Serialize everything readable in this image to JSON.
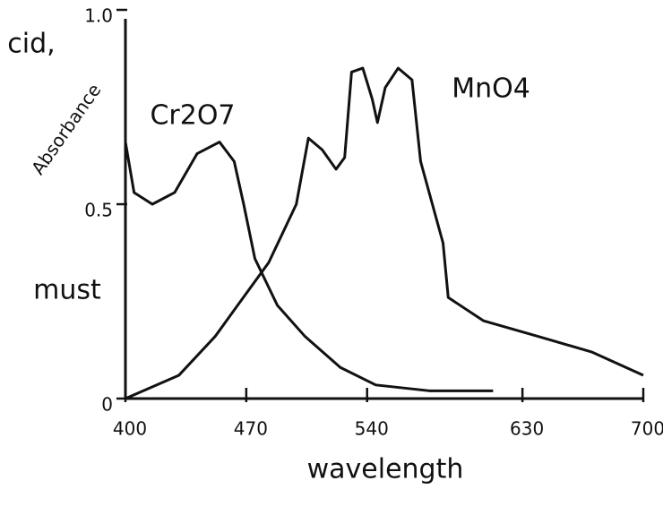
{
  "chart_data": {
    "type": "line",
    "x_label": "wavelength",
    "y_label": "Absorbance",
    "annotations": [
      "cid,",
      "must"
    ],
    "xlim": [
      400,
      700
    ],
    "xticks": [
      400,
      470,
      540,
      630,
      700
    ],
    "ylim": [
      0,
      1
    ],
    "yticks": [
      0,
      0.5,
      {
        "value": 1,
        "label": "1.0"
      }
    ],
    "series": [
      {
        "name": "Cr2O7",
        "color": "#111111",
        "x": [
          400,
          405,
          415.6,
          428.5,
          441.5,
          454.5,
          463,
          468.5,
          475,
          488,
          504,
          524.5,
          545,
          576,
          613
        ],
        "values": [
          0.66,
          0.53,
          0.5,
          0.53,
          0.63,
          0.66,
          0.61,
          0.5,
          0.36,
          0.24,
          0.16,
          0.08,
          0.035,
          0.02,
          0.02
        ]
      },
      {
        "name": "MnO4",
        "color": "#111111",
        "x": [
          400,
          431,
          452,
          465,
          483,
          499,
          506,
          514,
          522,
          527,
          531,
          537.5,
          543,
          546,
          550.5,
          558,
          566,
          571,
          584,
          587,
          607.5,
          639,
          670,
          700
        ],
        "values": [
          0,
          0.06,
          0.16,
          0.24,
          0.35,
          0.5,
          0.67,
          0.64,
          0.59,
          0.62,
          0.84,
          0.85,
          0.77,
          0.71,
          0.8,
          0.85,
          0.82,
          0.61,
          0.4,
          0.26,
          0.2,
          0.16,
          0.12,
          0.06
        ]
      }
    ]
  }
}
